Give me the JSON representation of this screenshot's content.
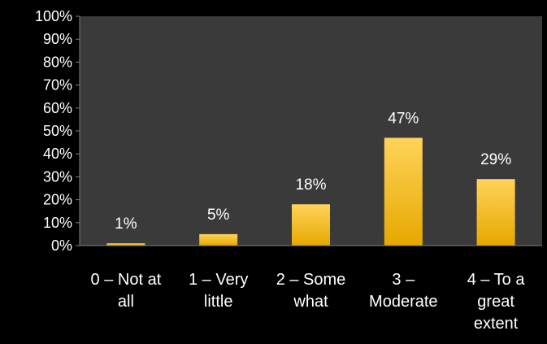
{
  "chart_data": {
    "type": "bar",
    "categories": [
      [
        "0 – Not at",
        "all"
      ],
      [
        "1 – Very",
        "little"
      ],
      [
        "2 – Some",
        "what"
      ],
      [
        "3 –",
        "Moderate"
      ],
      [
        "4 – To a",
        "great",
        "extent"
      ]
    ],
    "values": [
      1,
      5,
      18,
      47,
      29
    ],
    "data_labels": [
      "1%",
      "5%",
      "18%",
      "47%",
      "29%"
    ],
    "ylim": [
      0,
      100
    ],
    "yticks": [
      "0%",
      "10%",
      "20%",
      "30%",
      "40%",
      "50%",
      "60%",
      "70%",
      "80%",
      "90%",
      "100%"
    ],
    "title": "",
    "xlabel": "",
    "ylabel": "",
    "legend": "none",
    "grid": false,
    "colors": {
      "page_background": "#000000",
      "plot_background": "#3a3a3a",
      "bar_top": "#ffd35a",
      "bar_bottom": "#e6a800",
      "text": "#ffffff",
      "axis": "#7f7f7f"
    }
  }
}
